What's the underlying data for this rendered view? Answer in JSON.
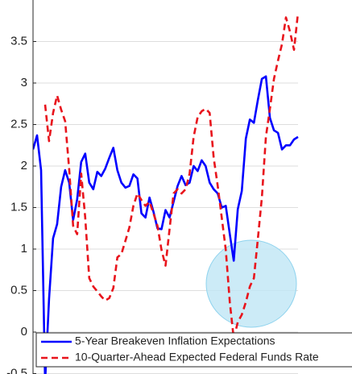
{
  "chart_data": {
    "type": "line",
    "categories": [
      null,
      null,
      null,
      null,
      null,
      null,
      null,
      null,
      null,
      null,
      null,
      null,
      null,
      null,
      null,
      null,
      null,
      null,
      null,
      null,
      null,
      null,
      null,
      null,
      null,
      null,
      null,
      null,
      null,
      null,
      null,
      null,
      null,
      null,
      null,
      null,
      null,
      null,
      null,
      null,
      null,
      null,
      null,
      null,
      null,
      null,
      null,
      null,
      null,
      null,
      null,
      null,
      null,
      null,
      null,
      null,
      null,
      null,
      null,
      null,
      null,
      null,
      null,
      null,
      null,
      null,
      null
    ],
    "series": [
      {
        "name": "5-Year Breakeven Inflation Expectations",
        "color": "#0000ff",
        "style": "solid",
        "values": [
          2.2,
          2.37,
          1.95,
          -0.6,
          0.4,
          1.13,
          1.3,
          1.75,
          1.95,
          1.8,
          1.35,
          1.6,
          2.05,
          2.15,
          1.8,
          1.72,
          1.93,
          1.88,
          1.97,
          2.1,
          2.22,
          1.95,
          1.8,
          1.74,
          1.76,
          1.9,
          1.85,
          1.43,
          1.38,
          1.62,
          1.45,
          1.25,
          1.24,
          1.47,
          1.38,
          1.57,
          1.76,
          1.88,
          1.77,
          1.8,
          2.0,
          1.94,
          2.07,
          2.0,
          1.8,
          1.72,
          1.67,
          1.5,
          1.52,
          1.18,
          0.86,
          1.48,
          1.7,
          2.33,
          2.56,
          2.52,
          2.8,
          3.05,
          3.08,
          2.58,
          2.43,
          2.4,
          2.2,
          2.25,
          2.25,
          2.32,
          2.35
        ]
      },
      {
        "name": "10-Quarter-Ahead Expected Federal Funds Rate",
        "color": "#e8141c",
        "style": "dashed",
        "values": [
          null,
          null,
          null,
          2.74,
          2.3,
          2.64,
          2.85,
          2.68,
          2.54,
          1.96,
          1.28,
          1.18,
          1.91,
          1.38,
          0.65,
          0.55,
          0.49,
          0.43,
          0.38,
          0.41,
          0.53,
          0.9,
          0.94,
          1.1,
          1.26,
          1.52,
          1.67,
          1.59,
          1.52,
          1.57,
          1.43,
          1.28,
          0.99,
          0.8,
          1.24,
          1.67,
          1.72,
          1.67,
          1.72,
          1.91,
          2.35,
          2.59,
          2.66,
          2.69,
          2.64,
          2.1,
          1.76,
          1.38,
          0.99,
          0.36,
          -0.08,
          0.12,
          0.21,
          0.36,
          0.55,
          0.65,
          1.13,
          1.62,
          2.35,
          2.69,
          3.05,
          3.27,
          3.47,
          3.79,
          3.62,
          3.4,
          3.85
        ]
      }
    ],
    "ylim": [
      -0.5,
      4
    ],
    "yticks": [
      -0.5,
      0,
      0.5,
      1,
      1.5,
      2,
      2.5,
      3,
      3.5
    ],
    "legend": "bottom"
  }
}
